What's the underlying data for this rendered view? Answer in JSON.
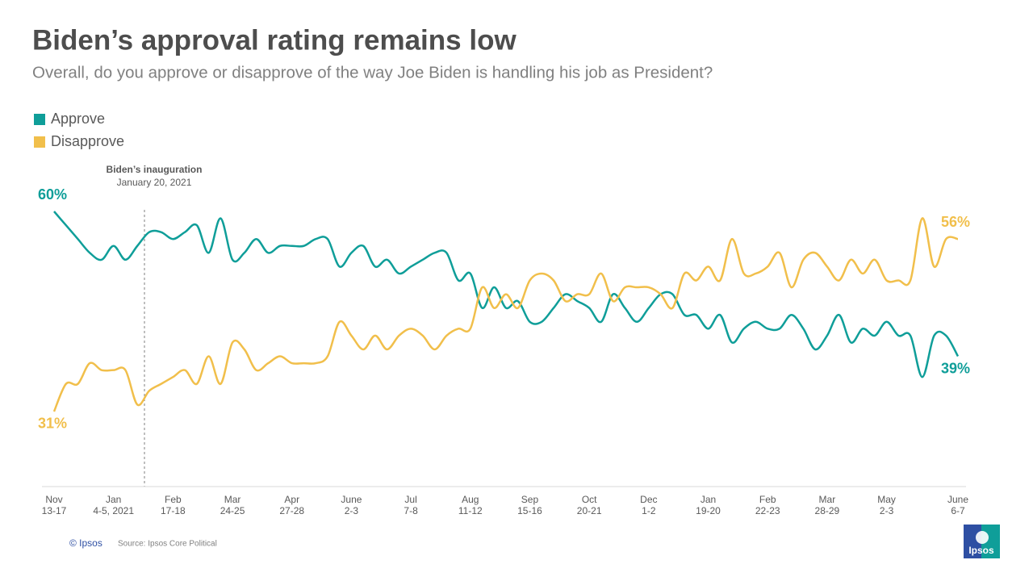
{
  "chart_data": {
    "type": "line",
    "title": "Biden’s approval rating remains low",
    "subtitle": "Overall, do you approve or disapprove of the way Joe Biden is handling his job as President?",
    "annotation": {
      "title": "Biden’s inauguration",
      "text": "January 20, 2021"
    },
    "source": "Source: Ipsos Core Political",
    "copyright": "© Ipsos",
    "logo": "Ipsos",
    "ylim": [
      20,
      65
    ],
    "legend": "top-left",
    "categories": [
      "Nov\n13-17",
      null,
      null,
      null,
      null,
      "Jan\n4-5, 2021",
      null,
      null,
      null,
      null,
      "Feb\n17-18",
      null,
      null,
      null,
      null,
      "Mar\n24-25",
      null,
      null,
      null,
      null,
      "Apr\n27-28",
      null,
      null,
      null,
      null,
      "June\n2-3",
      null,
      null,
      null,
      null,
      "Jul\n7-8",
      null,
      null,
      null,
      null,
      "Aug\n11-12",
      null,
      null,
      null,
      null,
      "Sep\n15-16",
      null,
      null,
      null,
      null,
      "Oct\n20-21",
      null,
      null,
      null,
      null,
      "Dec\n1-2",
      null,
      null,
      null,
      null,
      "Jan\n19-20",
      null,
      null,
      null,
      null,
      "Feb\n22-23",
      null,
      null,
      null,
      null,
      "Mar\n28-29",
      null,
      null,
      null,
      null,
      "May\n2-3",
      null,
      null,
      null,
      null,
      null,
      "June\n6-7"
    ],
    "series": [
      {
        "name": "Approve",
        "color": "#0f9e99",
        "values": [
          60,
          58,
          56,
          54,
          53,
          55,
          53,
          55,
          57,
          57,
          56,
          57,
          58,
          54,
          59,
          53,
          54,
          56,
          54,
          55,
          55,
          55,
          56,
          56,
          52,
          54,
          55,
          52,
          53,
          51,
          52,
          53,
          54,
          54,
          50,
          51,
          46,
          49,
          46,
          47,
          44,
          44,
          46,
          48,
          47,
          46,
          44,
          48,
          46,
          44,
          46,
          48,
          48,
          45,
          45,
          43,
          45,
          41,
          43,
          44,
          43,
          43,
          45,
          43,
          40,
          42,
          45,
          41,
          43,
          42,
          44,
          42,
          42,
          36,
          42,
          42,
          39
        ],
        "value_labels": [
          "60%",
          null,
          null,
          null,
          null,
          null,
          null,
          null,
          null,
          null,
          null,
          null,
          null,
          null,
          null,
          null,
          null,
          null,
          null,
          null,
          null,
          null,
          null,
          null,
          null,
          null,
          null,
          null,
          null,
          null,
          null,
          null,
          null,
          null,
          null,
          null,
          null,
          null,
          null,
          null,
          null,
          null,
          null,
          null,
          null,
          null,
          null,
          null,
          null,
          null,
          null,
          null,
          null,
          null,
          null,
          null,
          null,
          null,
          null,
          null,
          null,
          null,
          null,
          null,
          null,
          null,
          null,
          null,
          null,
          null,
          null,
          null,
          null,
          null,
          null,
          null,
          "39%"
        ]
      },
      {
        "name": "Disapprove",
        "color": "#f1bf4b",
        "values": [
          31,
          35,
          35,
          38,
          37,
          37,
          37,
          32,
          34,
          35,
          36,
          37,
          35,
          39,
          35,
          41,
          40,
          37,
          38,
          39,
          38,
          38,
          38,
          39,
          44,
          42,
          40,
          42,
          40,
          42,
          43,
          42,
          40,
          42,
          43,
          43,
          49,
          46,
          48,
          46,
          50,
          51,
          50,
          47,
          48,
          48,
          51,
          47,
          49,
          49,
          49,
          48,
          46,
          51,
          50,
          52,
          50,
          56,
          51,
          51,
          52,
          54,
          49,
          53,
          54,
          52,
          50,
          53,
          51,
          53,
          50,
          50,
          50,
          59,
          52,
          56,
          56
        ],
        "value_labels": [
          "31%",
          null,
          null,
          null,
          null,
          null,
          null,
          null,
          null,
          null,
          null,
          null,
          null,
          null,
          null,
          null,
          null,
          null,
          null,
          null,
          null,
          null,
          null,
          null,
          null,
          null,
          null,
          null,
          null,
          null,
          null,
          null,
          null,
          null,
          null,
          null,
          null,
          null,
          null,
          null,
          null,
          null,
          null,
          null,
          null,
          null,
          null,
          null,
          null,
          null,
          null,
          null,
          null,
          null,
          null,
          null,
          null,
          null,
          null,
          null,
          null,
          null,
          null,
          null,
          null,
          null,
          null,
          null,
          null,
          null,
          null,
          null,
          null,
          null,
          null,
          null,
          "56%"
        ]
      }
    ]
  }
}
